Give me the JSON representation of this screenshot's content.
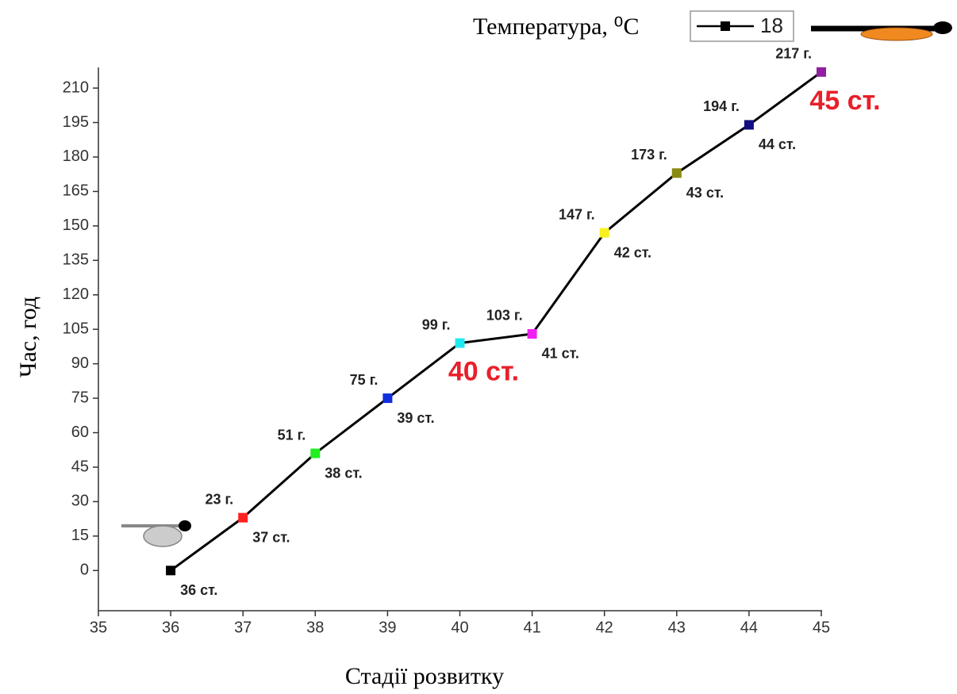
{
  "chart_data": {
    "type": "line",
    "x_label": "Стадії розвитку",
    "y_label": "Час, год",
    "legend_title": "Температура, ⁰C",
    "x": [
      36,
      37,
      38,
      39,
      40,
      41,
      42,
      43,
      44,
      45
    ],
    "series": [
      {
        "name": "18",
        "color": "#000000",
        "values": [
          0,
          23,
          51,
          75,
          99,
          103,
          147,
          173,
          194,
          217
        ],
        "value_labels": [
          null,
          "23 г.",
          "51 г.",
          "75 г.",
          "99 г.",
          "103 г.",
          "147 г.",
          "173 г.",
          "194 г.",
          "217 г."
        ],
        "marker_colors": [
          "#000000",
          "#ff2020",
          "#22ee22",
          "#1030e0",
          "#20e8f0",
          "#f020f0",
          "#f8f020",
          "#8a8a10",
          "#101080",
          "#9020a0"
        ],
        "point_labels": [
          "36 ст.",
          "37 ст.",
          "38 ст.",
          "39 ст.",
          "40 ст.",
          "41 ст.",
          "42 ст.",
          "43 ст.",
          "44 ст.",
          "45 ст."
        ],
        "highlighted": [
          false,
          false,
          false,
          false,
          true,
          false,
          false,
          false,
          false,
          true
        ]
      }
    ],
    "xlim": [
      35,
      45
    ],
    "xticks": [
      35,
      36,
      37,
      38,
      39,
      40,
      41,
      42,
      43,
      44,
      45
    ],
    "ylim": [
      -17.5,
      219
    ],
    "yticks": [
      0,
      15,
      30,
      45,
      60,
      75,
      90,
      105,
      120,
      135,
      150,
      165,
      180,
      195,
      210
    ],
    "grid": false
  }
}
